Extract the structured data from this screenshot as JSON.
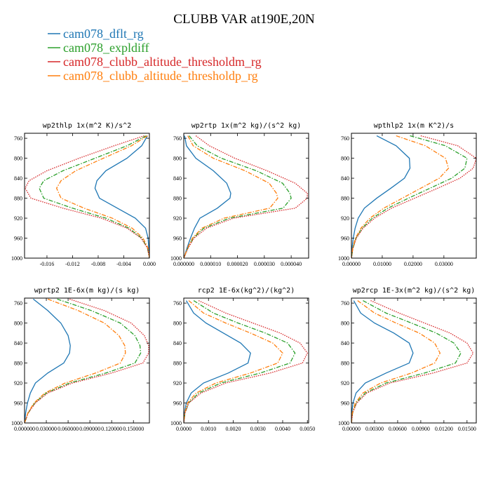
{
  "figure": {
    "title": "CLUBB VAR at190E,20N"
  },
  "legend": [
    {
      "label": "cam078_dflt_rg",
      "color": "#1f77b4",
      "dash": "solid"
    },
    {
      "label": "cam078_expldiff",
      "color": "#2ca02c",
      "dash": "dashdot"
    },
    {
      "label": "cam078_clubb_altitude_thresholdm_rg",
      "color": "#d62728",
      "dash": "dotted"
    },
    {
      "label": "cam078_clubb_altitude_thresholdp_rg",
      "color": "#ff7f0e",
      "dash": "dashdot"
    }
  ],
  "chart_data": [
    {
      "type": "line",
      "title": "wp2thlp  1x(m^2 K)/s^2",
      "xlim": [
        -0.0195,
        0.0
      ],
      "xticks": [
        -0.016,
        -0.012,
        -0.008,
        -0.004,
        0.0
      ],
      "xtick_labels": [
        "-0.016",
        "-0.012",
        "-0.008",
        "-0.004",
        "0.000"
      ],
      "ylim": [
        1000,
        750
      ],
      "yticks": [
        760,
        800,
        840,
        880,
        920,
        960,
        1000
      ],
      "y": [
        755,
        775,
        800,
        825,
        845,
        860,
        880,
        900,
        920,
        940,
        960,
        980,
        1000
      ],
      "series": [
        {
          "name": "cam078_dflt_rg",
          "x": [
            -0.0003,
            -0.0012,
            -0.0035,
            -0.0068,
            -0.0082,
            -0.0085,
            -0.0078,
            -0.005,
            -0.0022,
            -0.0006,
            -0.0002,
            -0.0001,
            0
          ]
        },
        {
          "name": "cam078_expldiff",
          "x": [
            -0.0005,
            -0.0035,
            -0.0085,
            -0.0135,
            -0.0165,
            -0.0172,
            -0.0165,
            -0.012,
            -0.0068,
            -0.0032,
            -0.0012,
            -0.0003,
            0
          ]
        },
        {
          "name": "cam078_clubb_altitude_thresholdm_rg",
          "x": [
            -0.0008,
            -0.0055,
            -0.011,
            -0.016,
            -0.0188,
            -0.0194,
            -0.0185,
            -0.0135,
            -0.0075,
            -0.0035,
            -0.0013,
            -0.0003,
            0
          ]
        },
        {
          "name": "cam078_clubb_altitude_thresholdp_rg",
          "x": [
            -0.0003,
            -0.0028,
            -0.0072,
            -0.0115,
            -0.0138,
            -0.0145,
            -0.0138,
            -0.0102,
            -0.0058,
            -0.0027,
            -0.001,
            -0.0002,
            0
          ]
        }
      ]
    },
    {
      "type": "line",
      "title": "wp2rtp  1x(m^2 kg)/(s^2 kg)",
      "xlim": [
        0.0,
        4.65e-05
      ],
      "xticks": [
        0.0,
        1e-05,
        2e-05,
        3e-05,
        4e-05
      ],
      "xtick_labels": [
        "0.000000",
        "0.000010",
        "0.000020",
        "0.000030",
        "0.000040"
      ],
      "ylim": [
        1000,
        750
      ],
      "yticks": [
        760,
        800,
        840,
        880,
        920,
        960,
        1000
      ],
      "y": [
        755,
        775,
        800,
        825,
        850,
        870,
        880,
        900,
        920,
        940,
        960,
        980,
        1000
      ],
      "series": [
        {
          "name": "cam078_dflt_rg",
          "x": [
            3e-07,
            1e-06,
            4.5e-06,
            1.1e-05,
            1.6e-05,
            1.75e-05,
            1.72e-05,
            1.25e-05,
            6e-06,
            4e-06,
            2.5e-06,
            1.2e-06,
            0
          ]
        },
        {
          "name": "cam078_expldiff",
          "x": [
            2e-06,
            5e-06,
            1.4e-05,
            2.7e-05,
            3.68e-05,
            3.95e-05,
            4e-05,
            3.7e-05,
            1.7e-05,
            7.5e-06,
            3.5e-06,
            1.5e-06,
            0
          ]
        },
        {
          "name": "cam078_clubb_altitude_thresholdm_rg",
          "x": [
            4.5e-06,
            9.5e-06,
            1.9e-05,
            3.1e-05,
            4.15e-05,
            4.6e-05,
            4.6e-05,
            4.15e-05,
            1.85e-05,
            8.5e-06,
            3.8e-06,
            1.6e-06,
            0
          ]
        },
        {
          "name": "cam078_clubb_altitude_thresholdp_rg",
          "x": [
            1.5e-06,
            3.5e-06,
            1.1e-05,
            2.28e-05,
            3.18e-05,
            3.45e-05,
            3.5e-05,
            3.2e-05,
            1.5e-05,
            6.8e-06,
            3.2e-06,
            1.4e-06,
            0
          ]
        }
      ]
    },
    {
      "type": "line",
      "title": "wpthlp2  1x(m K^2)/s",
      "xlim": [
        0.0,
        0.0405
      ],
      "xticks": [
        0.0,
        0.01,
        0.02,
        0.03
      ],
      "xtick_labels": [
        "0.00000",
        "0.01000",
        "0.02000",
        "0.03000"
      ],
      "ylim": [
        1000,
        750
      ],
      "yticks": [
        760,
        800,
        840,
        880,
        920,
        960,
        1000
      ],
      "y": [
        755,
        775,
        800,
        820,
        840,
        860,
        880,
        900,
        920,
        940,
        960,
        980,
        1000
      ],
      "series": [
        {
          "name": "cam078_dflt_rg",
          "x": [
            0.0082,
            0.0145,
            0.0188,
            0.019,
            0.0172,
            0.0128,
            0.0082,
            0.0042,
            0.0022,
            0.0012,
            0.0006,
            0.0002,
            0
          ]
        },
        {
          "name": "cam078_expldiff",
          "x": [
            0.019,
            0.0305,
            0.0375,
            0.0368,
            0.0325,
            0.0255,
            0.0185,
            0.0118,
            0.0068,
            0.0035,
            0.0015,
            0.0005,
            0
          ]
        },
        {
          "name": "cam078_clubb_altitude_thresholdm_rg",
          "x": [
            0.0225,
            0.0345,
            0.0405,
            0.0395,
            0.0352,
            0.028,
            0.0205,
            0.013,
            0.0075,
            0.0038,
            0.0016,
            0.0005,
            0
          ]
        },
        {
          "name": "cam078_clubb_altitude_thresholdp_rg",
          "x": [
            0.0145,
            0.024,
            0.0305,
            0.0315,
            0.0285,
            0.0225,
            0.0165,
            0.0105,
            0.006,
            0.0031,
            0.0013,
            0.0004,
            0
          ]
        }
      ]
    },
    {
      "type": "line",
      "title": "wprtp2  1E-6x(m kg)/(s kg)",
      "xlim": [
        0.0,
        0.172
      ],
      "xticks": [
        0.0,
        0.03,
        0.06,
        0.09,
        0.12,
        0.15
      ],
      "xtick_labels": [
        "0.000000",
        "0.030000",
        "0.060000",
        "0.090000",
        "0.120000",
        "0.150000"
      ],
      "ylim": [
        1000,
        750
      ],
      "yticks": [
        760,
        800,
        840,
        880,
        920,
        960,
        1000
      ],
      "y": [
        752,
        775,
        800,
        825,
        845,
        860,
        880,
        900,
        920,
        940,
        960,
        980,
        1000
      ],
      "series": [
        {
          "name": "cam078_dflt_rg",
          "x": [
            0.012,
            0.032,
            0.05,
            0.06,
            0.063,
            0.062,
            0.054,
            0.032,
            0.015,
            0.008,
            0.004,
            0.0015,
            0
          ]
        },
        {
          "name": "cam078_expldiff",
          "x": [
            0.045,
            0.092,
            0.132,
            0.152,
            0.159,
            0.16,
            0.152,
            0.112,
            0.062,
            0.03,
            0.014,
            0.005,
            0
          ]
        },
        {
          "name": "cam078_clubb_altitude_thresholdm_rg",
          "x": [
            0.062,
            0.11,
            0.147,
            0.165,
            0.171,
            0.171,
            0.163,
            0.12,
            0.066,
            0.032,
            0.015,
            0.005,
            0
          ]
        },
        {
          "name": "cam078_clubb_altitude_thresholdp_rg",
          "x": [
            0.032,
            0.074,
            0.11,
            0.13,
            0.138,
            0.139,
            0.132,
            0.098,
            0.056,
            0.028,
            0.013,
            0.0045,
            0
          ]
        }
      ]
    },
    {
      "type": "line",
      "title": "rcp2  1E-6x(kg^2)/(kg^2)",
      "xlim": [
        0.0,
        0.00505
      ],
      "xticks": [
        0.0,
        0.001,
        0.002,
        0.003,
        0.004,
        0.005
      ],
      "xtick_labels": [
        "0.0000",
        "0.0010",
        "0.0020",
        "0.0030",
        "0.0040",
        "0.0050"
      ],
      "ylim": [
        1000,
        750
      ],
      "yticks": [
        760,
        800,
        840,
        880,
        920,
        960,
        1000
      ],
      "y": [
        755,
        780,
        800,
        820,
        840,
        860,
        880,
        900,
        920,
        940,
        960,
        980,
        1000
      ],
      "series": [
        {
          "name": "cam078_dflt_rg",
          "x": [
            0.0001,
            0.0004,
            0.0009,
            0.0016,
            0.0023,
            0.0027,
            0.0026,
            0.0018,
            0.0008,
            0.0003,
            0.0001,
            3e-05,
            0
          ]
        },
        {
          "name": "cam078_expldiff",
          "x": [
            0.0004,
            0.0012,
            0.0022,
            0.0033,
            0.0042,
            0.0045,
            0.0043,
            0.0031,
            0.0015,
            0.0006,
            0.0002,
            5e-05,
            0
          ]
        },
        {
          "name": "cam078_clubb_altitude_thresholdm_rg",
          "x": [
            0.0006,
            0.0017,
            0.0028,
            0.0039,
            0.0047,
            0.005,
            0.0048,
            0.0035,
            0.0017,
            0.0007,
            0.0002,
            5e-05,
            0
          ]
        },
        {
          "name": "cam078_clubb_altitude_thresholdp_rg",
          "x": [
            0.0002,
            0.0008,
            0.0017,
            0.0027,
            0.0036,
            0.004,
            0.0038,
            0.0027,
            0.0013,
            0.0005,
            0.00015,
            4e-05,
            0
          ]
        }
      ]
    },
    {
      "type": "line",
      "title": "wp2rcp  1E-3x(m^2 kg)/(s^2 kg)",
      "xlim": [
        0.0,
        0.0162
      ],
      "xticks": [
        0.0,
        0.003,
        0.006,
        0.009,
        0.012,
        0.015
      ],
      "xtick_labels": [
        "0.00000",
        "0.00300",
        "0.00600",
        "0.00900",
        "0.01200",
        "0.01500"
      ],
      "ylim": [
        1000,
        750
      ],
      "yticks": [
        760,
        800,
        840,
        880,
        920,
        960,
        1000
      ],
      "y": [
        755,
        780,
        800,
        820,
        840,
        860,
        880,
        900,
        920,
        940,
        960,
        980,
        1000
      ],
      "series": [
        {
          "name": "cam078_dflt_rg",
          "x": [
            0.0003,
            0.0012,
            0.003,
            0.0055,
            0.0075,
            0.008,
            0.0075,
            0.0045,
            0.0018,
            0.0006,
            0.0002,
            5e-05,
            0
          ]
        },
        {
          "name": "cam078_expldiff",
          "x": [
            0.0015,
            0.0045,
            0.0078,
            0.011,
            0.0133,
            0.0142,
            0.0135,
            0.0095,
            0.0045,
            0.0018,
            0.0006,
            0.00015,
            0
          ]
        },
        {
          "name": "cam078_clubb_altitude_thresholdm_rg",
          "x": [
            0.0025,
            0.0062,
            0.0095,
            0.0128,
            0.015,
            0.0158,
            0.015,
            0.0106,
            0.005,
            0.002,
            0.0007,
            0.00015,
            0
          ]
        },
        {
          "name": "cam078_clubb_altitude_thresholdp_rg",
          "x": [
            0.0008,
            0.003,
            0.0058,
            0.0088,
            0.0108,
            0.0115,
            0.0108,
            0.0078,
            0.0038,
            0.0015,
            0.0005,
            0.00012,
            0
          ]
        }
      ]
    }
  ]
}
